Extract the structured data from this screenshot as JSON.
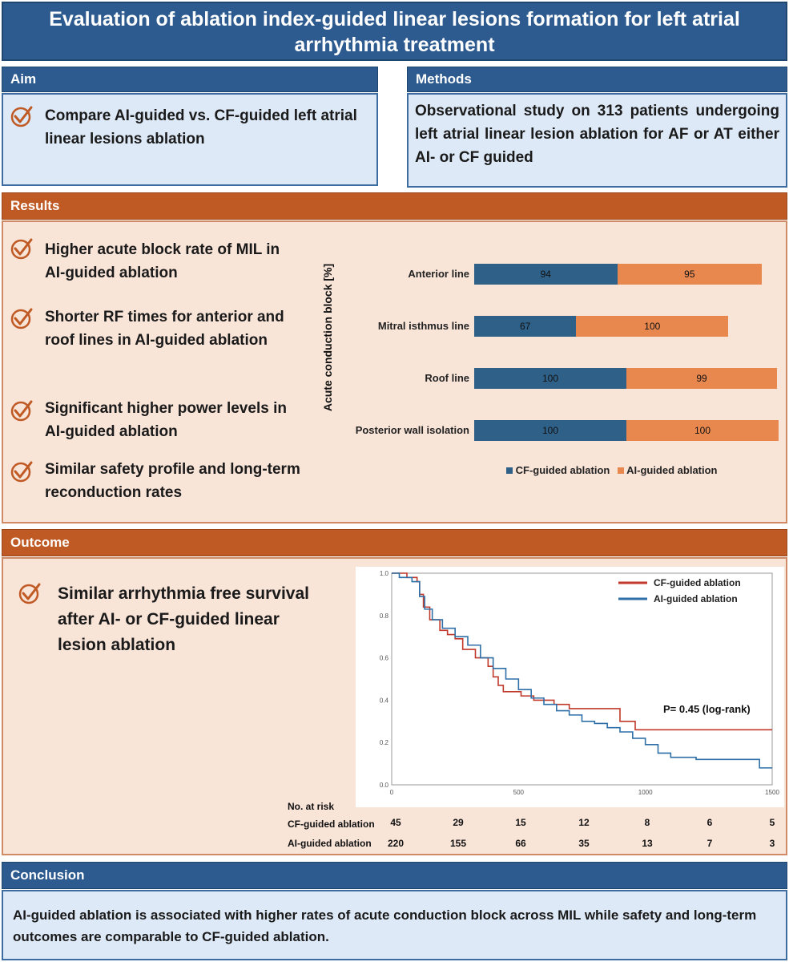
{
  "title": "Evaluation of ablation index-guided linear lesions formation for left atrial arrhythmia treatment",
  "aim": {
    "header": "Aim",
    "text": "Compare AI-guided vs. CF-guided left atrial linear lesions ablation"
  },
  "methods": {
    "header": "Methods",
    "text": "Observational study on 313 patients undergoing left atrial linear lesion ablation for AF or AT either AI- or CF guided"
  },
  "results": {
    "header": "Results",
    "points": [
      "Higher acute block rate of MIL in AI-guided ablation",
      "Shorter RF times for anterior and roof lines in AI-guided ablation",
      "Significant higher power levels in AI-guided ablation",
      "Similar safety profile and long-term reconduction rates"
    ]
  },
  "outcome": {
    "header": "Outcome",
    "text": "Similar arrhythmia free survival after AI- or CF-guided linear lesion ablation",
    "risk_header": "No. at risk",
    "risk_rows": [
      {
        "label": "CF-guided ablation",
        "values": [
          "45",
          "29",
          "15",
          "12",
          "8",
          "6",
          "5"
        ]
      },
      {
        "label": "AI-guided ablation",
        "values": [
          "220",
          "155",
          "66",
          "35",
          "13",
          "7",
          "3"
        ]
      }
    ]
  },
  "conclusion": {
    "header": "Conclusion",
    "text": "AI-guided ablation is associated with higher rates of acute conduction block across MIL while safety and long-term outcomes are comparable to CF-guided ablation."
  },
  "colors": {
    "cf_bar": "#2f6088",
    "ai_bar": "#e8874e",
    "cf_line": "#c0392b",
    "ai_line": "#2e6fa8"
  },
  "chart_data": [
    {
      "type": "bar",
      "orientation": "horizontal-stacked",
      "ylabel": "Acute conduction block [%]",
      "categories": [
        "Anterior line",
        "Mitral isthmus line",
        "Roof line",
        "Posterior wall isolation"
      ],
      "series": [
        {
          "name": "CF-guided ablation",
          "values": [
            94,
            67,
            100,
            100
          ]
        },
        {
          "name": "AI-guided ablation",
          "values": [
            95,
            100,
            99,
            100
          ]
        }
      ],
      "legend": "bottom"
    },
    {
      "type": "line",
      "title": "",
      "xlim": [
        0,
        1500
      ],
      "ylim": [
        0,
        1.0
      ],
      "xticks": [
        "0",
        "500",
        "1000",
        "1500"
      ],
      "yticks": [
        "0.0",
        "0.2",
        "0.4",
        "0.6",
        "0.8",
        "1.0"
      ],
      "annotation": "P= 0.45 (log-rank)",
      "legend": "top-right",
      "series": [
        {
          "name": "CF-guided ablation",
          "x": [
            0,
            60,
            100,
            110,
            125,
            150,
            190,
            220,
            250,
            280,
            330,
            360,
            380,
            400,
            420,
            440,
            470,
            510,
            560,
            640,
            700,
            900,
            960,
            1500
          ],
          "y": [
            1.0,
            0.98,
            0.96,
            0.9,
            0.84,
            0.78,
            0.73,
            0.71,
            0.69,
            0.64,
            0.6,
            0.6,
            0.56,
            0.51,
            0.47,
            0.44,
            0.44,
            0.42,
            0.4,
            0.38,
            0.36,
            0.3,
            0.26,
            0.26
          ]
        },
        {
          "name": "AI-guided ablation",
          "x": [
            0,
            30,
            80,
            110,
            130,
            160,
            200,
            250,
            300,
            350,
            400,
            450,
            500,
            550,
            600,
            650,
            700,
            750,
            800,
            850,
            900,
            950,
            1000,
            1050,
            1100,
            1200,
            1300,
            1400,
            1450,
            1500
          ],
          "y": [
            1.0,
            0.98,
            0.96,
            0.89,
            0.83,
            0.78,
            0.74,
            0.7,
            0.66,
            0.6,
            0.55,
            0.5,
            0.45,
            0.41,
            0.38,
            0.35,
            0.33,
            0.3,
            0.29,
            0.27,
            0.25,
            0.22,
            0.19,
            0.15,
            0.13,
            0.12,
            0.12,
            0.12,
            0.08,
            0.08
          ]
        }
      ]
    }
  ]
}
